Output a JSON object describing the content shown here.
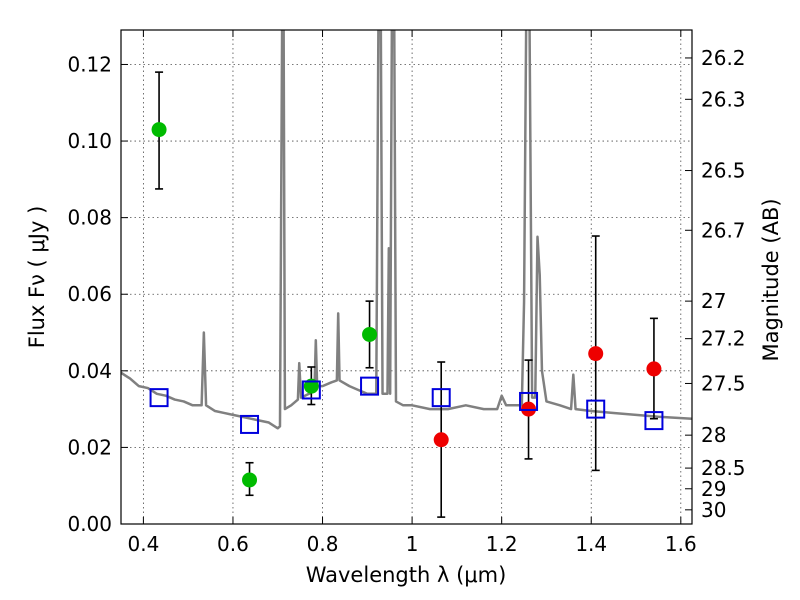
{
  "chart_data": {
    "type": "scatter",
    "xlabel": "Wavelength  λ (μm)",
    "ylabel": "Flux  Fν  ( μJy )",
    "y2label": "Magnitude (AB)",
    "xlim": [
      0.35,
      1.625
    ],
    "ylim": [
      0.0,
      0.129
    ],
    "grid": true,
    "x_ticks": [
      0.4,
      0.6,
      0.8,
      1.0,
      1.2,
      1.4,
      1.6
    ],
    "x_tick_labels": [
      "0.4",
      "0.6",
      "0.8",
      "1",
      "1.2",
      "1.4",
      "1.6"
    ],
    "y_ticks": [
      0.0,
      0.02,
      0.04,
      0.06,
      0.08,
      0.1,
      0.12
    ],
    "y_tick_labels": [
      "0.00",
      "0.02",
      "0.04",
      "0.06",
      "0.08",
      "0.10",
      "0.12"
    ],
    "mag_ticks": [
      {
        "label": "26.2",
        "flux": 0.1217
      },
      {
        "label": "26.3",
        "flux": 0.1109
      },
      {
        "label": "26.5",
        "flux": 0.0923
      },
      {
        "label": "26.7",
        "flux": 0.0767
      },
      {
        "label": "27",
        "flux": 0.0582
      },
      {
        "label": "27.2",
        "flux": 0.0484
      },
      {
        "label": "27.5",
        "flux": 0.0367
      },
      {
        "label": "28",
        "flux": 0.0232
      },
      {
        "label": "28.5",
        "flux": 0.0146
      },
      {
        "label": "29",
        "flux": 0.0092
      },
      {
        "label": "30",
        "flux": 0.0037
      }
    ],
    "colors": {
      "model": "#808080",
      "green_points": "#00bb00",
      "red_points": "#ee0000",
      "squares": "#0000dd",
      "errorbars": "#000000"
    },
    "series": [
      {
        "kind": "green-circles",
        "points": [
          {
            "x": 0.435,
            "y": 0.103,
            "err": [
              0.0875,
              0.118
            ]
          },
          {
            "x": 0.637,
            "y": 0.0115,
            "err": [
              0.0075,
              0.016
            ]
          },
          {
            "x": 0.775,
            "y": 0.036,
            "err": [
              0.0312,
              0.041
            ]
          },
          {
            "x": 0.905,
            "y": 0.0495,
            "err": [
              0.0408,
              0.0582
            ]
          }
        ]
      },
      {
        "kind": "red-circles",
        "points": [
          {
            "x": 1.065,
            "y": 0.022,
            "err": [
              0.0018,
              0.0423
            ]
          },
          {
            "x": 1.26,
            "y": 0.03,
            "err": [
              0.017,
              0.0428
            ]
          },
          {
            "x": 1.41,
            "y": 0.0445,
            "err": [
              0.014,
              0.0752
            ]
          },
          {
            "x": 1.54,
            "y": 0.0405,
            "err": [
              0.0275,
              0.0537
            ]
          }
        ]
      },
      {
        "kind": "blue-squares",
        "points": [
          {
            "x": 0.435,
            "y": 0.033
          },
          {
            "x": 0.637,
            "y": 0.026
          },
          {
            "x": 0.775,
            "y": 0.035
          },
          {
            "x": 0.905,
            "y": 0.036
          },
          {
            "x": 1.065,
            "y": 0.033
          },
          {
            "x": 1.26,
            "y": 0.032
          },
          {
            "x": 1.41,
            "y": 0.03
          },
          {
            "x": 1.54,
            "y": 0.027
          }
        ]
      }
    ],
    "model_spectrum": [
      [
        0.35,
        0.0395
      ],
      [
        0.37,
        0.038
      ],
      [
        0.39,
        0.036
      ],
      [
        0.41,
        0.0355
      ],
      [
        0.43,
        0.034
      ],
      [
        0.45,
        0.0335
      ],
      [
        0.47,
        0.0325
      ],
      [
        0.49,
        0.032
      ],
      [
        0.51,
        0.031
      ],
      [
        0.53,
        0.031
      ],
      [
        0.535,
        0.05
      ],
      [
        0.54,
        0.031
      ],
      [
        0.56,
        0.0295
      ],
      [
        0.58,
        0.029
      ],
      [
        0.6,
        0.0285
      ],
      [
        0.62,
        0.028
      ],
      [
        0.64,
        0.0275
      ],
      [
        0.66,
        0.027
      ],
      [
        0.68,
        0.0265
      ],
      [
        0.7,
        0.025
      ],
      [
        0.705,
        0.0255
      ],
      [
        0.71,
        0.135
      ],
      [
        0.713,
        0.135
      ],
      [
        0.716,
        0.03
      ],
      [
        0.73,
        0.031
      ],
      [
        0.745,
        0.0325
      ],
      [
        0.748,
        0.042
      ],
      [
        0.752,
        0.033
      ],
      [
        0.77,
        0.034
      ],
      [
        0.782,
        0.035
      ],
      [
        0.785,
        0.048
      ],
      [
        0.788,
        0.036
      ],
      [
        0.8,
        0.036
      ],
      [
        0.82,
        0.037
      ],
      [
        0.832,
        0.0375
      ],
      [
        0.835,
        0.055
      ],
      [
        0.838,
        0.0375
      ],
      [
        0.86,
        0.036
      ],
      [
        0.88,
        0.035
      ],
      [
        0.9,
        0.034
      ],
      [
        0.92,
        0.034
      ],
      [
        0.925,
        0.135
      ],
      [
        0.93,
        0.135
      ],
      [
        0.934,
        0.034
      ],
      [
        0.945,
        0.034
      ],
      [
        0.948,
        0.072
      ],
      [
        0.951,
        0.034
      ],
      [
        0.955,
        0.135
      ],
      [
        0.96,
        0.135
      ],
      [
        0.964,
        0.032
      ],
      [
        0.98,
        0.031
      ],
      [
        1.0,
        0.031
      ],
      [
        1.04,
        0.03
      ],
      [
        1.08,
        0.03
      ],
      [
        1.12,
        0.031
      ],
      [
        1.16,
        0.03
      ],
      [
        1.19,
        0.03
      ],
      [
        1.2,
        0.0335
      ],
      [
        1.21,
        0.031
      ],
      [
        1.245,
        0.031
      ],
      [
        1.25,
        0.058
      ],
      [
        1.255,
        0.135
      ],
      [
        1.262,
        0.135
      ],
      [
        1.268,
        0.033
      ],
      [
        1.275,
        0.033
      ],
      [
        1.28,
        0.075
      ],
      [
        1.285,
        0.065
      ],
      [
        1.29,
        0.04
      ],
      [
        1.3,
        0.032
      ],
      [
        1.33,
        0.031
      ],
      [
        1.355,
        0.03
      ],
      [
        1.36,
        0.039
      ],
      [
        1.365,
        0.03
      ],
      [
        1.4,
        0.0295
      ],
      [
        1.45,
        0.029
      ],
      [
        1.5,
        0.0285
      ],
      [
        1.55,
        0.028
      ],
      [
        1.625,
        0.0275
      ]
    ]
  }
}
